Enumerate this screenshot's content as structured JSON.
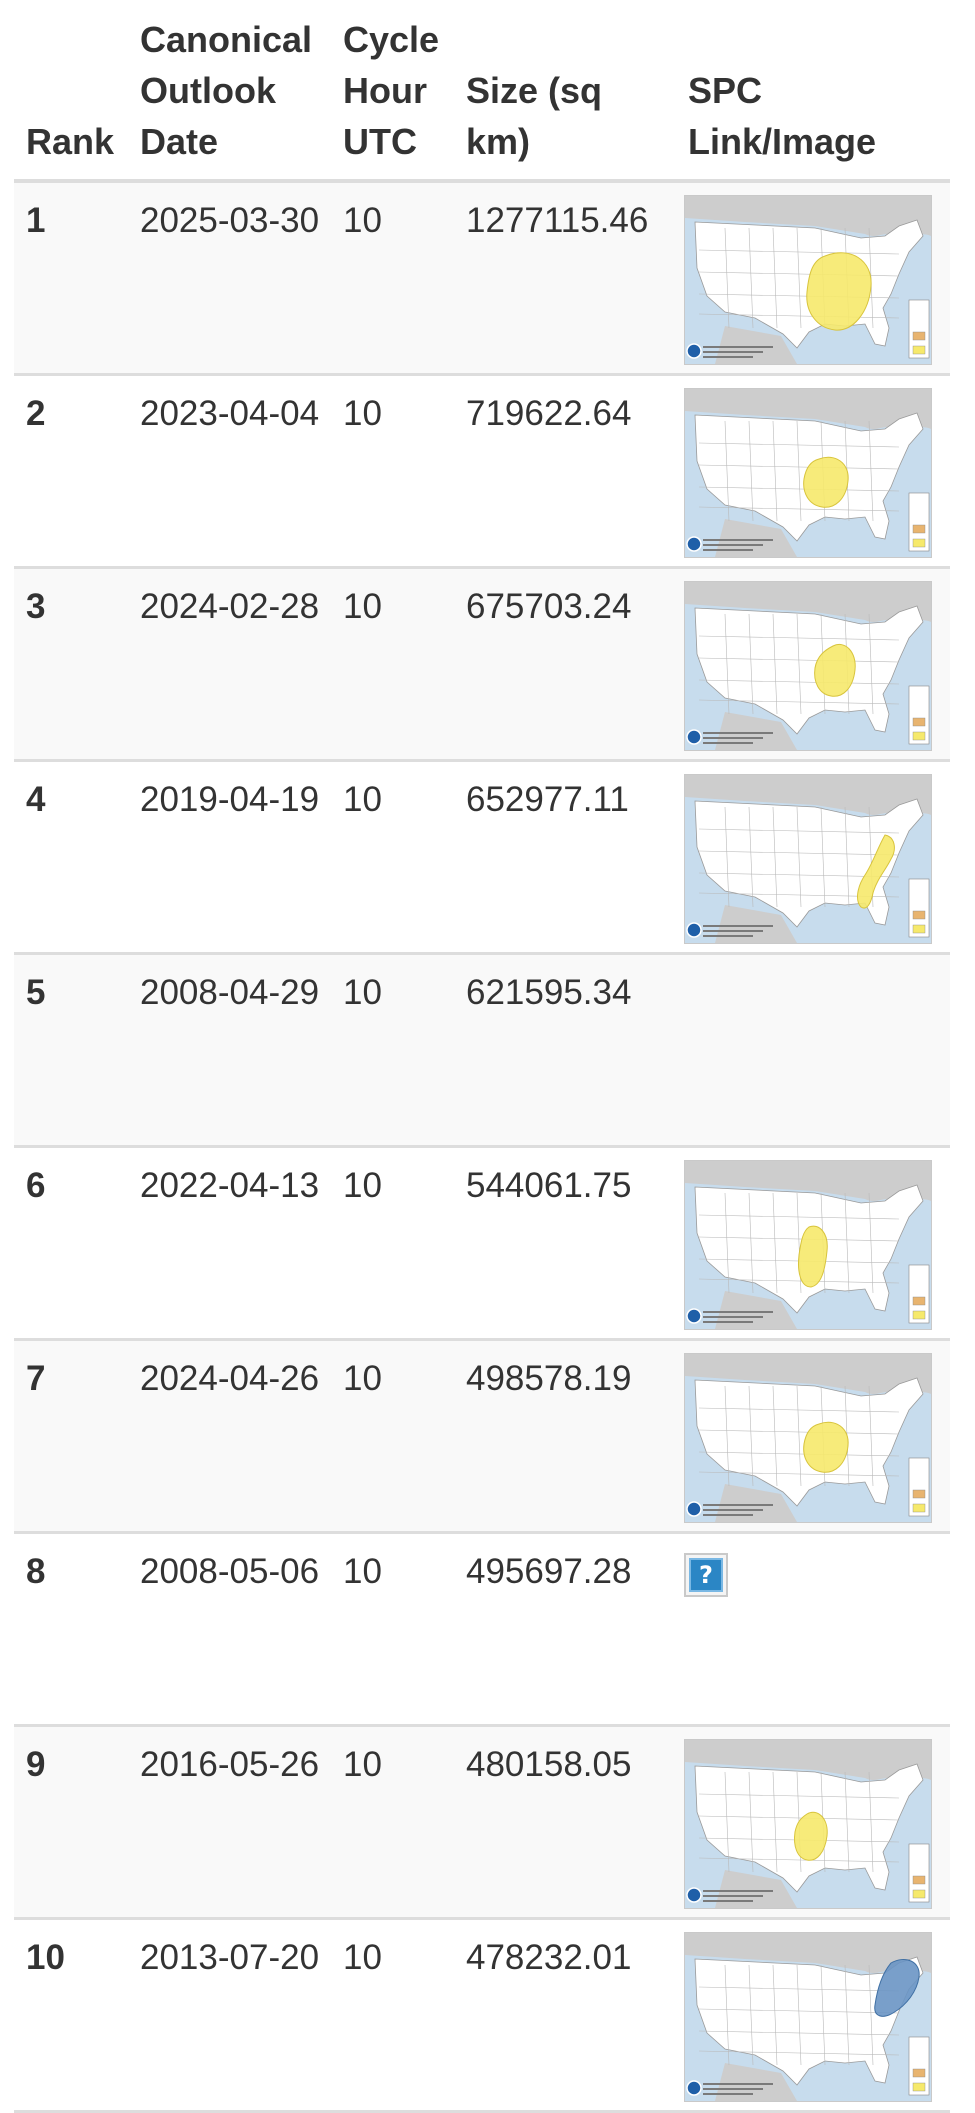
{
  "table": {
    "headers": {
      "rank": "Rank",
      "date": "Canonical Outlook Date",
      "cycle": "Cycle Hour UTC",
      "size": "Size (sq km)",
      "link": "SPC Link/Image"
    },
    "broken_image_glyph": "?",
    "colors": {
      "risk_yellow": "#f6e96b",
      "risk_blue": "#6a95c4",
      "ocean": "#c7dced",
      "land": "#ffffff",
      "neighbor_land": "#cdcdcd"
    },
    "rows": [
      {
        "rank": "1",
        "date": "2025-03-30",
        "cycle": "10",
        "size": "1277115.46",
        "image": "map",
        "risk_color": "yellow",
        "risk_area": "central-east"
      },
      {
        "rank": "2",
        "date": "2023-04-04",
        "cycle": "10",
        "size": "719622.64",
        "image": "map",
        "risk_color": "yellow",
        "risk_area": "mid-mississippi-valley"
      },
      {
        "rank": "3",
        "date": "2024-02-28",
        "cycle": "10",
        "size": "675703.24",
        "image": "map",
        "risk_color": "yellow",
        "risk_area": "ohio-tennessee-valley"
      },
      {
        "rank": "4",
        "date": "2019-04-19",
        "cycle": "10",
        "size": "652977.11",
        "image": "map",
        "risk_color": "yellow",
        "risk_area": "east-coast"
      },
      {
        "rank": "5",
        "date": "2008-04-29",
        "cycle": "10",
        "size": "621595.34",
        "image": "none",
        "risk_color": "",
        "risk_area": ""
      },
      {
        "rank": "6",
        "date": "2022-04-13",
        "cycle": "10",
        "size": "544061.75",
        "image": "map",
        "risk_color": "yellow",
        "risk_area": "lower-mississippi-valley"
      },
      {
        "rank": "7",
        "date": "2024-04-26",
        "cycle": "10",
        "size": "498578.19",
        "image": "map",
        "risk_color": "yellow",
        "risk_area": "mid-mississippi-valley"
      },
      {
        "rank": "8",
        "date": "2008-05-06",
        "cycle": "10",
        "size": "495697.28",
        "image": "broken",
        "risk_color": "",
        "risk_area": ""
      },
      {
        "rank": "9",
        "date": "2016-05-26",
        "cycle": "10",
        "size": "480158.05",
        "image": "map",
        "risk_color": "yellow",
        "risk_area": "southern-plains"
      },
      {
        "rank": "10",
        "date": "2013-07-20",
        "cycle": "10",
        "size": "478232.01",
        "image": "map",
        "risk_color": "blue",
        "risk_area": "northeast"
      }
    ]
  }
}
